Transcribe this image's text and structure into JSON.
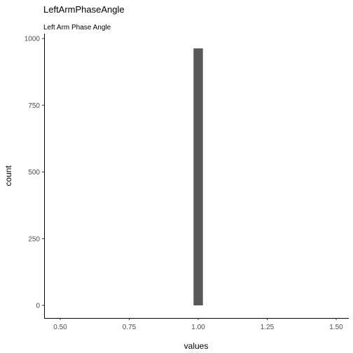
{
  "chart_data": {
    "type": "bar",
    "title": "LeftArmPhaseAngle",
    "subtitle": "Left Arm Phase Angle",
    "xlabel": "values",
    "ylabel": "count",
    "xlim": [
      0.45,
      1.55
    ],
    "ylim": [
      0,
      1000
    ],
    "x_ticks": [
      "0.50",
      "0.75",
      "1.00",
      "1.25",
      "1.50"
    ],
    "x_tick_values": [
      0.5,
      0.75,
      1.0,
      1.25,
      1.5
    ],
    "y_ticks": [
      "0",
      "250",
      "500",
      "750",
      "1000"
    ],
    "y_tick_values": [
      0,
      250,
      500,
      750,
      1000
    ],
    "bars": [
      {
        "x_min": 0.983,
        "x_max": 1.017,
        "count": 963
      }
    ],
    "bar_color": "#595959",
    "grid": false,
    "legend": "none"
  }
}
